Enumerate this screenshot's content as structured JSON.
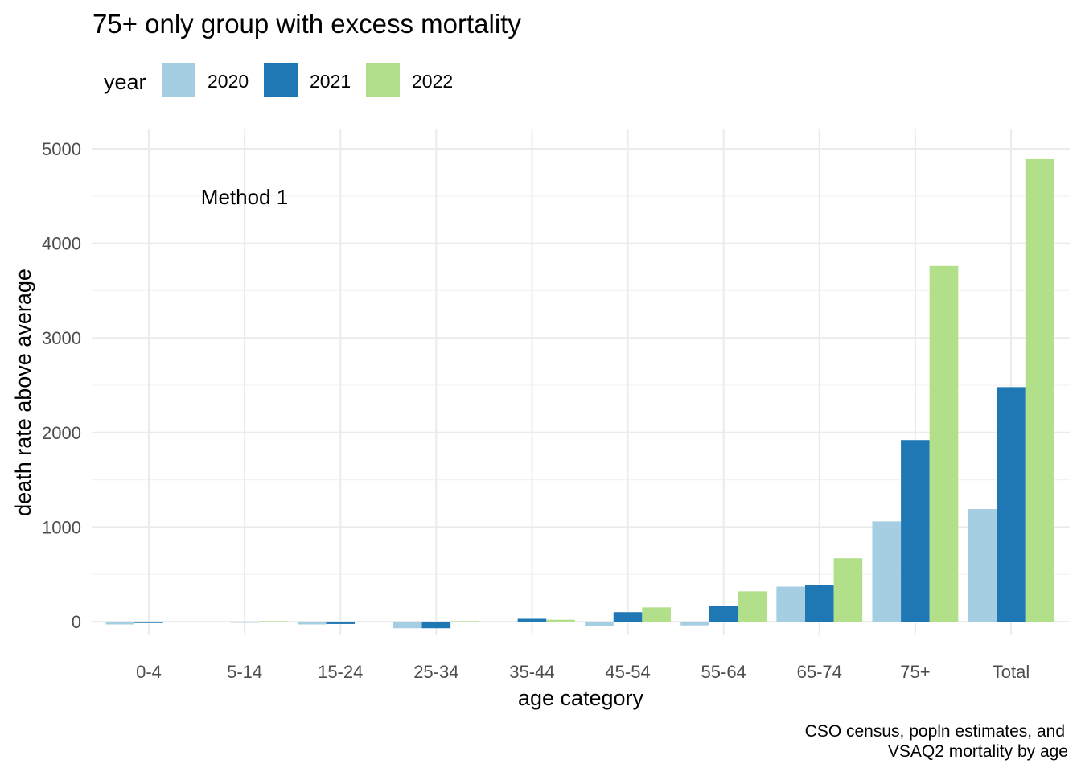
{
  "chart_data": {
    "type": "bar",
    "title": "75+ only group with excess mortality",
    "xlabel": "age category",
    "ylabel": "death rate above average",
    "legend_title": "year",
    "legend_position": "top-left",
    "annotation": "Method 1",
    "caption_lines": [
      "CSO census, popln estimates, and",
      "VSAQ2 mortality by age"
    ],
    "categories": [
      "0-4",
      "5-14",
      "15-24",
      "25-34",
      "35-44",
      "45-54",
      "55-64",
      "65-74",
      "75+",
      "Total"
    ],
    "ylim": [
      -100,
      5100
    ],
    "yticks": [
      0,
      1000,
      2000,
      3000,
      4000,
      5000
    ],
    "grid": true,
    "series": [
      {
        "name": "2020",
        "color": "#a6cee3",
        "values": [
          -30,
          0,
          -30,
          -70,
          0,
          -50,
          -40,
          370,
          1060,
          1190
        ]
      },
      {
        "name": "2021",
        "color": "#1f78b4",
        "values": [
          -15,
          -10,
          -25,
          -70,
          30,
          100,
          170,
          390,
          1920,
          2480
        ]
      },
      {
        "name": "2022",
        "color": "#b2df8a",
        "values": [
          0,
          5,
          0,
          5,
          20,
          150,
          320,
          670,
          3760,
          4890
        ]
      }
    ]
  }
}
